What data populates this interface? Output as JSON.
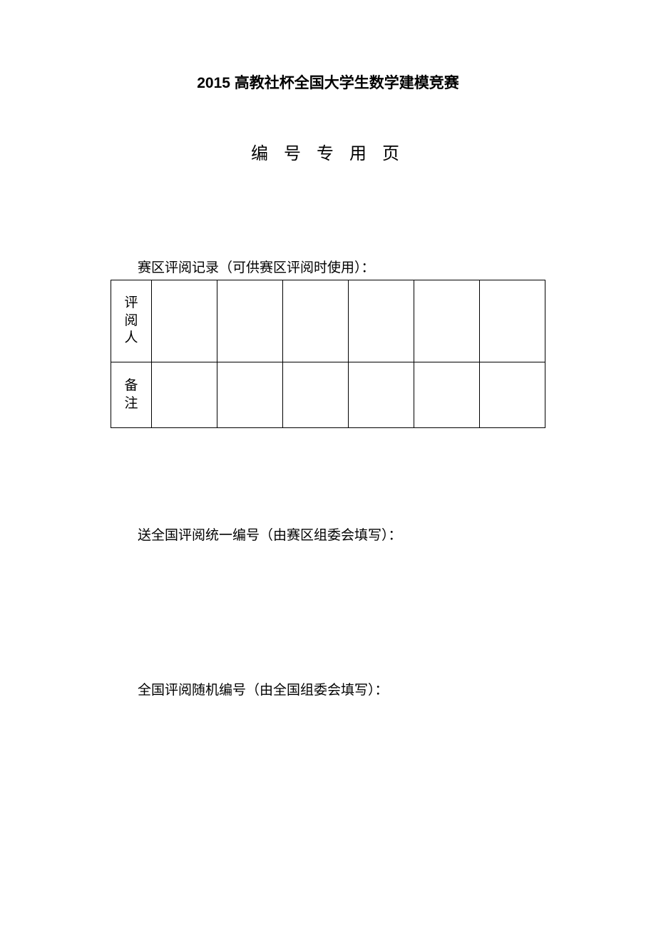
{
  "title": "2015 高教社杯全国大学生数学建模竞赛",
  "subtitle": "编 号 专 用 页",
  "table_label": "赛区评阅记录（可供赛区评阅时使用）：",
  "row_header_1_char1": "评",
  "row_header_1_char2": "阅",
  "row_header_1_char3": "人",
  "row_header_2_char1": "备",
  "row_header_2_char2": "注",
  "field_1": "送全国评阅统一编号（由赛区组委会填写）：",
  "field_2": "全国评阅随机编号（由全国组委会填写）：",
  "table_columns": 6
}
